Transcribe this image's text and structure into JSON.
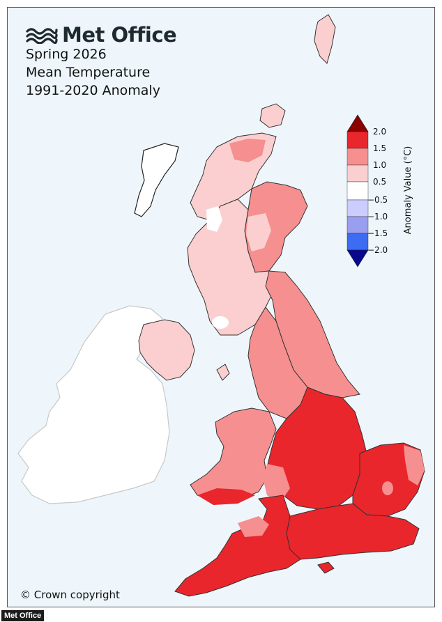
{
  "header": {
    "brand": "Met Office",
    "logo_icon": "met-office-wave-logo-icon",
    "title_lines": [
      "Spring 2026",
      "Mean Temperature",
      "1991-2020 Anomaly"
    ]
  },
  "legend": {
    "title": "Anomaly Value (°C)",
    "ticks": [
      "2.0",
      "1.5",
      "1.0",
      "0.5",
      "−0.5",
      "−1.0",
      "−1.5",
      "−2.0"
    ],
    "colors": {
      "over_max": "#8b0000",
      "1.5_to_2.0": "#e8262c",
      "1.0_to_1.5": "#f68f8f",
      "0.5_to_1.0": "#fbcfcf",
      "-0.5_to_0.5": "#ffffff",
      "-1.0_to_-0.5": "#ccccff",
      "-1.5_to_-1.0": "#9a9ef0",
      "-2.0_to_-1.5": "#3b6cf2",
      "under_min": "#08078f"
    }
  },
  "map": {
    "regions": [
      {
        "name": "Northern Scotland",
        "anomaly_band": "0.5_to_1.0"
      },
      {
        "name": "Eastern Scotland",
        "anomaly_band": "1.0_to_1.5"
      },
      {
        "name": "Western Scotland",
        "anomaly_band": "0.5_to_1.0"
      },
      {
        "name": "Northern Ireland",
        "anomaly_band": "0.5_to_1.0"
      },
      {
        "name": "North East England",
        "anomaly_band": "1.0_to_1.5"
      },
      {
        "name": "North West England",
        "anomaly_band": "1.0_to_1.5"
      },
      {
        "name": "Wales",
        "anomaly_band": "1.0_to_1.5"
      },
      {
        "name": "Midlands",
        "anomaly_band": "1.5_to_2.0"
      },
      {
        "name": "East Anglia",
        "anomaly_band": "1.5_to_2.0"
      },
      {
        "name": "South East England",
        "anomaly_band": "1.5_to_2.0"
      },
      {
        "name": "South West England",
        "anomaly_band": "1.5_to_2.0"
      }
    ],
    "ireland_fill": "#ffffff"
  },
  "footer": {
    "copyright": "© Crown copyright",
    "source_tag": "Met Office"
  }
}
